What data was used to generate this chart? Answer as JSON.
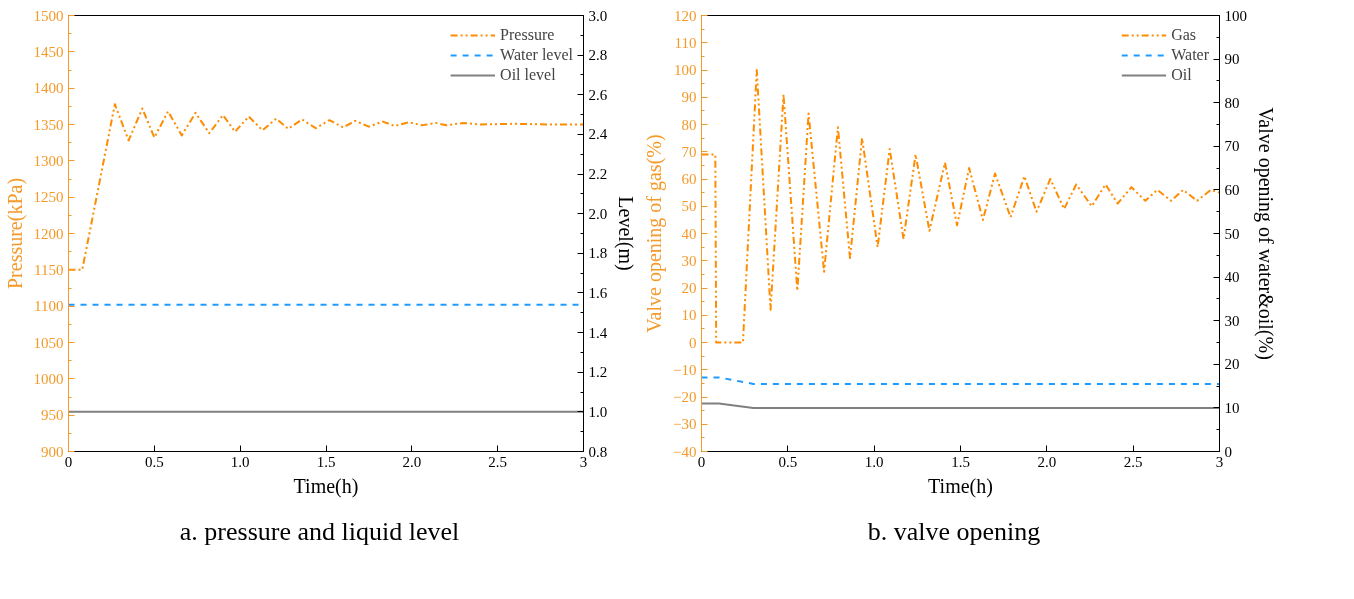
{
  "chart_data": [
    {
      "type": "line",
      "title": "a.   pressure and liquid level",
      "xlabel": "Time(h)",
      "ylabel": "Pressure(kPa)",
      "y2label": "Level(m)",
      "xlim": [
        0,
        3
      ],
      "xticks": [
        0,
        0.5,
        {
          "value": 1,
          "label": "1.0"
        },
        {
          "value": 1.5,
          "label": "1.5"
        },
        {
          "value": 2,
          "label": "2.0"
        },
        {
          "value": 2.5,
          "label": "2.5"
        },
        3
      ],
      "ylim": [
        900,
        1500
      ],
      "yticks": [
        900,
        950,
        1000,
        1050,
        1100,
        1150,
        1200,
        1250,
        1300,
        1350,
        1400,
        1450,
        1500
      ],
      "y2lim": [
        0.8,
        3.0
      ],
      "y2ticks": [
        0.8,
        {
          "value": 1,
          "label": "1.0"
        },
        1.2,
        1.4,
        1.6,
        1.8,
        {
          "value": 2,
          "label": "2.0"
        },
        2.2,
        2.4,
        2.6,
        2.8,
        {
          "value": 3,
          "label": "3.0"
        }
      ],
      "grid": false,
      "legend": "top right",
      "marker": "none",
      "series": [
        {
          "name": "Pressure",
          "color": "#ff8c00",
          "line_style": "dashdot",
          "x": [
            0,
            0.08,
            0.27,
            0.35,
            0.43,
            0.5,
            0.58,
            0.66,
            0.74,
            0.82,
            0.9,
            0.97,
            1.05,
            1.13,
            1.21,
            1.28,
            1.36,
            1.44,
            1.52,
            1.6,
            1.67,
            1.75,
            1.83,
            1.9,
            1.98,
            2.06,
            2.14,
            2.2,
            2.3,
            2.4,
            2.6,
            2.8,
            3
          ],
          "values": [
            1150,
            1150,
            1378,
            1328,
            1372,
            1332,
            1368,
            1335,
            1366,
            1338,
            1363,
            1340,
            1361,
            1342,
            1358,
            1344,
            1357,
            1345,
            1356,
            1346,
            1355,
            1347,
            1354,
            1348,
            1353,
            1349,
            1352,
            1349,
            1352,
            1350,
            1351,
            1350,
            1350
          ]
        },
        {
          "name": "Water level",
          "color": "#1e9bff",
          "line_style": "dashed",
          "axis": "y2",
          "x": [
            0,
            3
          ],
          "values": [
            1.54,
            1.54
          ]
        },
        {
          "name": "Oil level",
          "color": "#808080",
          "line_style": "solid",
          "axis": "y2",
          "x": [
            0,
            3
          ],
          "values": [
            1.0,
            1.0
          ]
        }
      ]
    },
    {
      "type": "line",
      "title": "b.   valve opening",
      "xlabel": "Time(h)",
      "ylabel": "Valve opening of gas(%)",
      "y2label": "Valve opening of water&oil(%)",
      "xlim": [
        0,
        3
      ],
      "xticks": [
        0,
        0.5,
        {
          "value": 1,
          "label": "1.0"
        },
        {
          "value": 1.5,
          "label": "1.5"
        },
        {
          "value": 2,
          "label": "2.0"
        },
        {
          "value": 2.5,
          "label": "2.5"
        },
        3
      ],
      "ylim": [
        -40,
        120
      ],
      "yticks": [
        -40,
        -30,
        -20,
        -10,
        0,
        10,
        20,
        30,
        40,
        50,
        60,
        70,
        80,
        90,
        100,
        110,
        120
      ],
      "y2lim": [
        0,
        100
      ],
      "y2ticks": [
        0,
        10,
        20,
        30,
        40,
        50,
        60,
        70,
        80,
        90,
        100
      ],
      "grid": false,
      "legend": "top right",
      "marker": "none",
      "series": [
        {
          "name": "Gas",
          "color": "#ff8c00",
          "line_style": "dashdot",
          "x": [
            0,
            0.08,
            0.085,
            0.24,
            0.32,
            0.4,
            0.475,
            0.555,
            0.62,
            0.71,
            0.79,
            0.86,
            0.93,
            1.02,
            1.09,
            1.17,
            1.24,
            1.32,
            1.41,
            1.48,
            1.55,
            1.63,
            1.7,
            1.79,
            1.87,
            1.94,
            2.02,
            2.1,
            2.17,
            2.26,
            2.34,
            2.41,
            2.49,
            2.57,
            2.64,
            2.72,
            2.79,
            2.87,
            2.95,
            3
          ],
          "values": [
            69,
            69,
            0,
            0,
            100,
            12,
            91,
            19,
            84,
            26,
            79,
            31,
            75,
            35,
            71,
            38,
            69,
            41,
            66,
            43,
            64,
            45,
            62,
            46,
            61,
            48,
            60,
            49,
            58,
            50,
            58,
            51,
            57,
            52,
            56,
            52,
            56,
            52,
            56,
            55
          ]
        },
        {
          "name": "Water",
          "color": "#1e9bff",
          "line_style": "dashed",
          "axis": "y2",
          "x": [
            0,
            0.1,
            0.3,
            3
          ],
          "values": [
            17,
            17,
            15.5,
            15.5
          ]
        },
        {
          "name": "Oil",
          "color": "#808080",
          "line_style": "solid",
          "axis": "y2",
          "x": [
            0,
            0.1,
            0.3,
            3
          ],
          "values": [
            11,
            11,
            10,
            10
          ]
        }
      ]
    }
  ]
}
